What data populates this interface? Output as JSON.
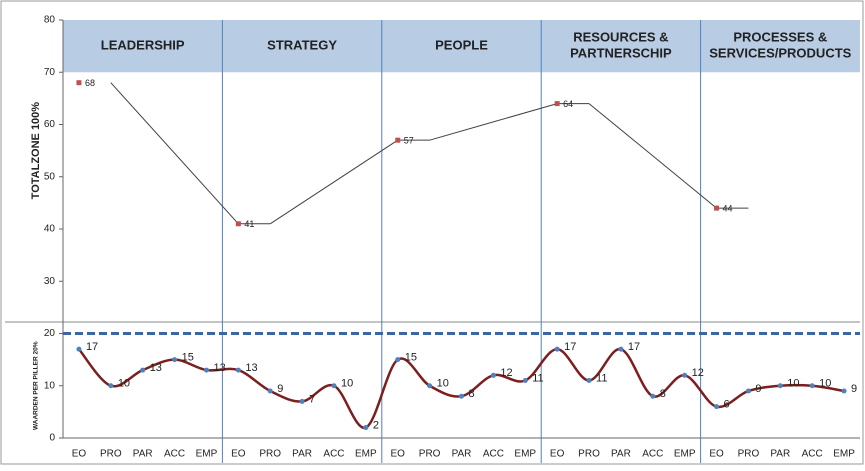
{
  "chart_data": {
    "type": "line",
    "axis_labels": [
      "TOTALZONE 100%",
      "WAARDEN PER PILLER 20%"
    ],
    "groups": [
      [
        "LEADERSHIP"
      ],
      [
        "STRATEGY"
      ],
      [
        "PEOPLE"
      ],
      [
        "RESOURCES &",
        "PARTNERSCHIP"
      ],
      [
        "PROCESSES &",
        "SERVICES/PRODUCTS"
      ]
    ],
    "categories": [
      "EO",
      "PRO",
      "PAR",
      "ACC",
      "EMP",
      "EO",
      "PRO",
      "PAR",
      "ACC",
      "EMP",
      "EO",
      "PRO",
      "PAR",
      "ACC",
      "EMP",
      "EO",
      "PRO",
      "PAR",
      "ACC",
      "EMP",
      "EO",
      "PRO",
      "PAR",
      "ACC",
      "EMP"
    ],
    "series": [
      {
        "color": "#404040",
        "marker_color": "#c0504d",
        "values": [
          68,
          68,
          null,
          null,
          null,
          41,
          41,
          null,
          null,
          null,
          57,
          57,
          null,
          null,
          null,
          64,
          64,
          null,
          null,
          null,
          44,
          44,
          null,
          null,
          null
        ]
      },
      {
        "color": "#7b1f1f",
        "marker_color": "#4f81bd",
        "smooth": true,
        "values": [
          17,
          10,
          13,
          15,
          13,
          13,
          9,
          7,
          10,
          2,
          15,
          10,
          8,
          12,
          11,
          17,
          11,
          17,
          8,
          12,
          6,
          9,
          10,
          10,
          9
        ]
      }
    ],
    "reference_line": 20,
    "header_band": [
      70,
      80
    ],
    "ylim": [
      0,
      80
    ],
    "yticks": [
      0,
      10,
      20,
      30,
      40,
      50,
      60,
      70,
      80
    ]
  }
}
